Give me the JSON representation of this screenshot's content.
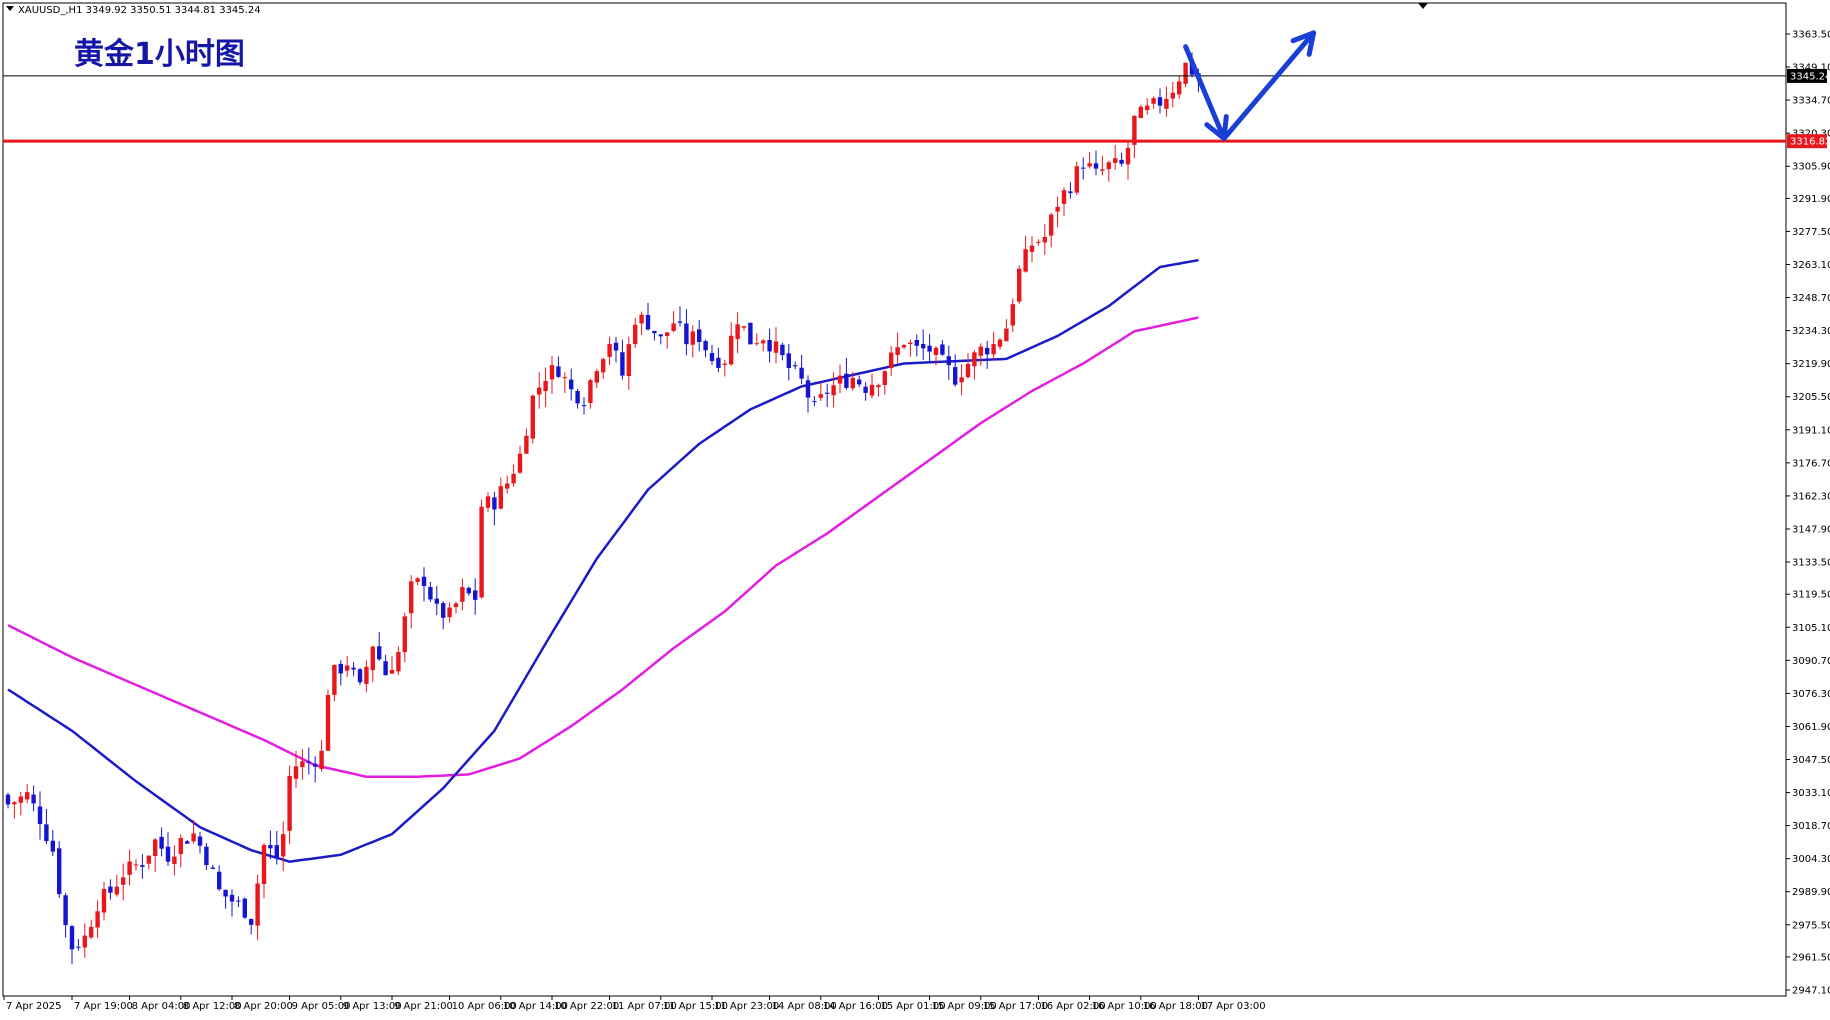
{
  "header": {
    "symbol_line": "XAUUSD_,H1  3349.92 3350.51 3344.81 3345.24",
    "chart_title": "黄金1小时图"
  },
  "colors": {
    "bull": "#e8171c",
    "bear": "#1515d0",
    "ma_fast": "#1b1bc8",
    "ma_slow": "#e21ee2",
    "support": "#e8171c",
    "arrow": "#1a3fd6"
  },
  "chart_data": {
    "type": "candlestick",
    "symbol": "XAUUSD_",
    "timeframe": "H1",
    "ylim": [
      2947.1,
      3368.0
    ],
    "y_ticks": [
      "3363.50",
      "3349.10",
      "3334.70",
      "3320.30",
      "3305.90",
      "3291.90",
      "3277.50",
      "3263.10",
      "3248.70",
      "3234.30",
      "3219.90",
      "3205.50",
      "3191.10",
      "3176.70",
      "3162.30",
      "3147.90",
      "3133.50",
      "3119.50",
      "3105.10",
      "3090.70",
      "3076.30",
      "3061.90",
      "3047.50",
      "3033.10",
      "3018.70",
      "3004.30",
      "2989.90",
      "2975.50",
      "2961.50",
      "2947.10"
    ],
    "x_ticks": [
      "7 Apr 2025",
      "7 Apr 19:00",
      "8 Apr 04:00",
      "8 Apr 12:00",
      "8 Apr 20:00",
      "9 Apr 05:00",
      "9 Apr 13:00",
      "9 Apr 21:00",
      "10 Apr 06:00",
      "10 Apr 14:00",
      "10 Apr 22:00",
      "11 Apr 07:00",
      "11 Apr 15:00",
      "11 Apr 23:00",
      "14 Apr 08:00",
      "14 Apr 16:00",
      "15 Apr 01:00",
      "15 Apr 09:00",
      "15 Apr 17:00",
      "16 Apr 02:00",
      "16 Apr 10:00",
      "16 Apr 18:00",
      "17 Apr 03:00"
    ],
    "x_tick_bar_index": [
      0,
      10,
      19,
      27,
      35,
      44,
      52,
      60,
      69,
      77,
      85,
      94,
      102,
      110,
      119,
      127,
      136,
      144,
      152,
      161,
      169,
      177,
      186
    ],
    "current_price": "3345.24",
    "current_price_value": 3345.24,
    "support_price": "3316.82",
    "support_price_value": 3316.82,
    "close_anchors": [
      [
        0,
        3028
      ],
      [
        3,
        3032
      ],
      [
        5,
        3022
      ],
      [
        7,
        3008
      ],
      [
        9,
        2975
      ],
      [
        10,
        2966
      ],
      [
        12,
        2970
      ],
      [
        14,
        2985
      ],
      [
        16,
        2990
      ],
      [
        18,
        2998
      ],
      [
        21,
        3003
      ],
      [
        23,
        3012
      ],
      [
        25,
        3006
      ],
      [
        27,
        3012
      ],
      [
        29,
        3015
      ],
      [
        31,
        3005
      ],
      [
        33,
        2990
      ],
      [
        35,
        2986
      ],
      [
        37,
        2982
      ],
      [
        38,
        2978
      ],
      [
        40,
        3010
      ],
      [
        42,
        3005
      ],
      [
        43,
        3015
      ],
      [
        44,
        3040
      ],
      [
        45,
        3045
      ],
      [
        47,
        3046
      ],
      [
        49,
        3050
      ],
      [
        50,
        3078
      ],
      [
        51,
        3085
      ],
      [
        53,
        3090
      ],
      [
        55,
        3078
      ],
      [
        57,
        3098
      ],
      [
        59,
        3085
      ],
      [
        61,
        3094
      ],
      [
        63,
        3122
      ],
      [
        65,
        3126
      ],
      [
        67,
        3112
      ],
      [
        69,
        3110
      ],
      [
        71,
        3120
      ],
      [
        73,
        3118
      ],
      [
        74,
        3158
      ],
      [
        76,
        3160
      ],
      [
        78,
        3168
      ],
      [
        80,
        3180
      ],
      [
        82,
        3205
      ],
      [
        84,
        3215
      ],
      [
        86,
        3218
      ],
      [
        88,
        3208
      ],
      [
        90,
        3205
      ],
      [
        92,
        3220
      ],
      [
        94,
        3230
      ],
      [
        96,
        3215
      ],
      [
        98,
        3240
      ],
      [
        100,
        3238
      ],
      [
        102,
        3230
      ],
      [
        104,
        3238
      ],
      [
        106,
        3230
      ],
      [
        108,
        3232
      ],
      [
        110,
        3222
      ],
      [
        112,
        3222
      ],
      [
        114,
        3240
      ],
      [
        116,
        3230
      ],
      [
        118,
        3232
      ],
      [
        120,
        3226
      ],
      [
        122,
        3218
      ],
      [
        124,
        3212
      ],
      [
        126,
        3200
      ],
      [
        128,
        3208
      ],
      [
        130,
        3212
      ],
      [
        132,
        3214
      ],
      [
        134,
        3210
      ],
      [
        136,
        3214
      ],
      [
        138,
        3222
      ],
      [
        140,
        3230
      ],
      [
        142,
        3226
      ],
      [
        144,
        3226
      ],
      [
        146,
        3220
      ],
      [
        148,
        3214
      ],
      [
        150,
        3220
      ],
      [
        152,
        3226
      ],
      [
        154,
        3228
      ],
      [
        156,
        3236
      ],
      [
        158,
        3260
      ],
      [
        160,
        3272
      ],
      [
        162,
        3275
      ],
      [
        164,
        3290
      ],
      [
        166,
        3298
      ],
      [
        168,
        3308
      ],
      [
        170,
        3302
      ],
      [
        172,
        3306
      ],
      [
        174,
        3306
      ],
      [
        175,
        3314
      ],
      [
        176,
        3326
      ],
      [
        178,
        3330
      ],
      [
        180,
        3334
      ],
      [
        182,
        3340
      ],
      [
        184,
        3350
      ],
      [
        186,
        3345.24
      ]
    ],
    "ma_fast_values": [
      [
        0,
        3078
      ],
      [
        10,
        3060
      ],
      [
        20,
        3038
      ],
      [
        30,
        3018
      ],
      [
        38,
        3008
      ],
      [
        44,
        3003
      ],
      [
        52,
        3006
      ],
      [
        60,
        3015
      ],
      [
        68,
        3035
      ],
      [
        76,
        3060
      ],
      [
        84,
        3098
      ],
      [
        92,
        3135
      ],
      [
        100,
        3165
      ],
      [
        108,
        3185
      ],
      [
        116,
        3200
      ],
      [
        124,
        3210
      ],
      [
        132,
        3215
      ],
      [
        140,
        3220
      ],
      [
        148,
        3221
      ],
      [
        156,
        3222
      ],
      [
        164,
        3232
      ],
      [
        172,
        3245
      ],
      [
        180,
        3262
      ],
      [
        186,
        3265
      ]
    ],
    "ma_slow_values": [
      [
        0,
        3106
      ],
      [
        10,
        3092
      ],
      [
        20,
        3080
      ],
      [
        30,
        3068
      ],
      [
        40,
        3056
      ],
      [
        48,
        3045
      ],
      [
        56,
        3040
      ],
      [
        64,
        3040
      ],
      [
        72,
        3041
      ],
      [
        80,
        3048
      ],
      [
        88,
        3062
      ],
      [
        96,
        3078
      ],
      [
        104,
        3096
      ],
      [
        112,
        3112
      ],
      [
        120,
        3132
      ],
      [
        128,
        3146
      ],
      [
        136,
        3162
      ],
      [
        144,
        3178
      ],
      [
        152,
        3194
      ],
      [
        160,
        3208
      ],
      [
        168,
        3220
      ],
      [
        176,
        3234
      ],
      [
        186,
        3240
      ]
    ],
    "arrows": [
      {
        "from": [
          184,
          3358
        ],
        "to": [
          190,
          3318
        ]
      },
      {
        "from": [
          190,
          3318
        ],
        "to": [
          204,
          3364
        ]
      }
    ],
    "total_bars": 187,
    "grid": false
  }
}
